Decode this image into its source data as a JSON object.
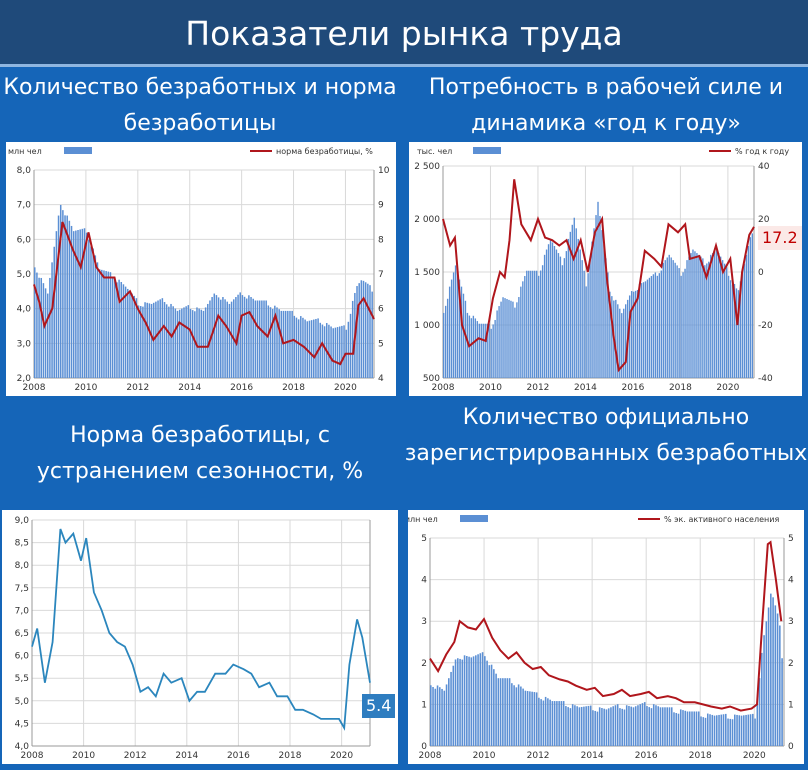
{
  "header": {
    "title": "Показатели рынка труда"
  },
  "colors": {
    "bar": "#5b8fd4",
    "line_red": "#b0161c",
    "line_blue": "#2b86bd",
    "grid": "#d9d9d9"
  },
  "chart_data": [
    {
      "type": "bar",
      "panel_title": "Количество безработных и норма безработицы",
      "legend": {
        "bar": "млн чел",
        "line": "норма безработицы, %"
      },
      "x_ticks": [
        "2008",
        "2010",
        "2012",
        "2014",
        "2016",
        "2018",
        "2020"
      ],
      "ylim": [
        2,
        8
      ],
      "y_ticks": [
        "2,0",
        "3,0",
        "4,0",
        "5,0",
        "6,0",
        "7,0",
        "8,0"
      ],
      "y2lim": [
        4,
        10
      ],
      "y2_ticks": [
        "4",
        "5",
        "6",
        "7",
        "8",
        "9",
        "10"
      ],
      "x_start": 2008,
      "x_end": 2021.1,
      "bars": [
        [
          2008,
          5.3
        ],
        [
          2008.5,
          4.4
        ],
        [
          2009,
          7.1
        ],
        [
          2009.5,
          6.2
        ],
        [
          2010,
          6.3
        ],
        [
          2010.5,
          5.1
        ],
        [
          2011,
          5.0
        ],
        [
          2011.5,
          4.6
        ],
        [
          2012,
          4.2
        ],
        [
          2012.5,
          4.1
        ],
        [
          2013,
          4.3
        ],
        [
          2013.5,
          3.9
        ],
        [
          2014,
          4.1
        ],
        [
          2014.5,
          3.9
        ],
        [
          2015,
          4.5
        ],
        [
          2015.5,
          4.1
        ],
        [
          2016,
          4.5
        ],
        [
          2016.5,
          4.2
        ],
        [
          2017,
          4.2
        ],
        [
          2017.5,
          3.9
        ],
        [
          2018,
          3.9
        ],
        [
          2018.5,
          3.6
        ],
        [
          2019,
          3.7
        ],
        [
          2019.5,
          3.4
        ],
        [
          2020,
          3.5
        ],
        [
          2020.4,
          4.6
        ],
        [
          2020.6,
          4.8
        ],
        [
          2021,
          4.6
        ]
      ],
      "line": [
        [
          2008,
          6.7
        ],
        [
          2008.2,
          6.2
        ],
        [
          2008.4,
          5.5
        ],
        [
          2008.7,
          6.0
        ],
        [
          2009.1,
          8.5
        ],
        [
          2009.5,
          7.7
        ],
        [
          2009.8,
          7.2
        ],
        [
          2010.1,
          8.2
        ],
        [
          2010.4,
          7.2
        ],
        [
          2010.7,
          6.9
        ],
        [
          2011.1,
          6.9
        ],
        [
          2011.3,
          6.2
        ],
        [
          2011.7,
          6.5
        ],
        [
          2012,
          6.0
        ],
        [
          2012.3,
          5.6
        ],
        [
          2012.6,
          5.1
        ],
        [
          2013,
          5.5
        ],
        [
          2013.3,
          5.2
        ],
        [
          2013.6,
          5.6
        ],
        [
          2014,
          5.4
        ],
        [
          2014.3,
          4.9
        ],
        [
          2014.7,
          4.9
        ],
        [
          2015.1,
          5.8
        ],
        [
          2015.4,
          5.5
        ],
        [
          2015.8,
          5.0
        ],
        [
          2016,
          5.8
        ],
        [
          2016.3,
          5.9
        ],
        [
          2016.6,
          5.5
        ],
        [
          2017,
          5.2
        ],
        [
          2017.3,
          5.8
        ],
        [
          2017.6,
          5.0
        ],
        [
          2018,
          5.1
        ],
        [
          2018.4,
          4.9
        ],
        [
          2018.8,
          4.6
        ],
        [
          2019.1,
          5.0
        ],
        [
          2019.5,
          4.5
        ],
        [
          2019.8,
          4.4
        ],
        [
          2020,
          4.7
        ],
        [
          2020.3,
          4.7
        ],
        [
          2020.5,
          6.1
        ],
        [
          2020.7,
          6.3
        ],
        [
          2020.9,
          6.0
        ],
        [
          2021.1,
          5.7
        ]
      ]
    },
    {
      "type": "bar",
      "panel_title": "Потребность в рабочей силе и динамика «год к году»",
      "legend": {
        "bar": "тыс. чел",
        "line": "% год к году"
      },
      "callout": "17.2",
      "x_ticks": [
        "2008",
        "2010",
        "2012",
        "2014",
        "2016",
        "2018",
        "2020"
      ],
      "ylim": [
        500,
        2500
      ],
      "y_ticks": [
        "500",
        "1 000",
        "1 500",
        "2 000",
        "2 500"
      ],
      "y2lim": [
        -40,
        40
      ],
      "y2_ticks": [
        "-40",
        "-20",
        "0",
        "20",
        "40"
      ],
      "x_start": 2008,
      "x_end": 2021.1,
      "bars": [
        [
          2008,
          1150
        ],
        [
          2008.5,
          1550
        ],
        [
          2009,
          1150
        ],
        [
          2009.5,
          1000
        ],
        [
          2010,
          1000
        ],
        [
          2010.5,
          1250
        ],
        [
          2011,
          1200
        ],
        [
          2011.5,
          1500
        ],
        [
          2012,
          1500
        ],
        [
          2012.5,
          1800
        ],
        [
          2013,
          1600
        ],
        [
          2013.5,
          2000
        ],
        [
          2014,
          1400
        ],
        [
          2014.5,
          2150
        ],
        [
          2015,
          1350
        ],
        [
          2015.5,
          1100
        ],
        [
          2016,
          1350
        ],
        [
          2016.5,
          1400
        ],
        [
          2017,
          1500
        ],
        [
          2017.5,
          1650
        ],
        [
          2018,
          1500
        ],
        [
          2018.5,
          1700
        ],
        [
          2019,
          1600
        ],
        [
          2019.5,
          1700
        ],
        [
          2020,
          1500
        ],
        [
          2020.4,
          1300
        ],
        [
          2020.7,
          1600
        ],
        [
          2021,
          1900
        ]
      ],
      "line": [
        [
          2008,
          20
        ],
        [
          2008.3,
          10
        ],
        [
          2008.5,
          13
        ],
        [
          2008.8,
          -20
        ],
        [
          2009.1,
          -28
        ],
        [
          2009.5,
          -25
        ],
        [
          2009.8,
          -26
        ],
        [
          2010.1,
          -10
        ],
        [
          2010.4,
          0
        ],
        [
          2010.6,
          -2
        ],
        [
          2010.8,
          12
        ],
        [
          2011,
          35
        ],
        [
          2011.3,
          18
        ],
        [
          2011.7,
          12
        ],
        [
          2012,
          20
        ],
        [
          2012.3,
          13
        ],
        [
          2012.6,
          12
        ],
        [
          2012.9,
          10
        ],
        [
          2013.2,
          12
        ],
        [
          2013.5,
          5
        ],
        [
          2013.8,
          12
        ],
        [
          2014.1,
          0
        ],
        [
          2014.4,
          15
        ],
        [
          2014.7,
          20
        ],
        [
          2014.9,
          -2
        ],
        [
          2015.2,
          -25
        ],
        [
          2015.4,
          -37
        ],
        [
          2015.7,
          -34
        ],
        [
          2015.9,
          -15
        ],
        [
          2016.2,
          -10
        ],
        [
          2016.5,
          8
        ],
        [
          2016.9,
          5
        ],
        [
          2017.2,
          2
        ],
        [
          2017.5,
          18
        ],
        [
          2017.9,
          15
        ],
        [
          2018.2,
          18
        ],
        [
          2018.4,
          5
        ],
        [
          2018.8,
          6
        ],
        [
          2019.1,
          -2
        ],
        [
          2019.5,
          10
        ],
        [
          2019.8,
          0
        ],
        [
          2020.1,
          5
        ],
        [
          2020.4,
          -20
        ],
        [
          2020.6,
          0
        ],
        [
          2020.9,
          14
        ],
        [
          2021.1,
          17
        ]
      ]
    },
    {
      "type": "line",
      "panel_title": "Норма безработицы, с устранением сезонности, %",
      "callout": "5.4",
      "x_ticks": [
        "2008",
        "2010",
        "2012",
        "2014",
        "2016",
        "2018",
        "2020"
      ],
      "ylim": [
        4.0,
        9.0
      ],
      "y_ticks": [
        "4,0",
        "4,5",
        "5,0",
        "5,5",
        "6,0",
        "6,5",
        "7,0",
        "7,5",
        "8,0",
        "8,5",
        "9,0"
      ],
      "x_start": 2008,
      "x_end": 2021.1,
      "line": [
        [
          2008,
          6.2
        ],
        [
          2008.2,
          6.6
        ],
        [
          2008.5,
          5.4
        ],
        [
          2008.8,
          6.3
        ],
        [
          2009.1,
          8.8
        ],
        [
          2009.3,
          8.5
        ],
        [
          2009.6,
          8.7
        ],
        [
          2009.9,
          8.1
        ],
        [
          2010.1,
          8.6
        ],
        [
          2010.4,
          7.4
        ],
        [
          2010.7,
          7.0
        ],
        [
          2011,
          6.5
        ],
        [
          2011.3,
          6.3
        ],
        [
          2011.6,
          6.2
        ],
        [
          2011.9,
          5.8
        ],
        [
          2012.2,
          5.2
        ],
        [
          2012.5,
          5.3
        ],
        [
          2012.8,
          5.1
        ],
        [
          2013.1,
          5.6
        ],
        [
          2013.4,
          5.4
        ],
        [
          2013.8,
          5.5
        ],
        [
          2014.1,
          5.0
        ],
        [
          2014.4,
          5.2
        ],
        [
          2014.7,
          5.2
        ],
        [
          2015.1,
          5.6
        ],
        [
          2015.5,
          5.6
        ],
        [
          2015.8,
          5.8
        ],
        [
          2016.2,
          5.7
        ],
        [
          2016.5,
          5.6
        ],
        [
          2016.8,
          5.3
        ],
        [
          2017.2,
          5.4
        ],
        [
          2017.5,
          5.1
        ],
        [
          2017.9,
          5.1
        ],
        [
          2018.2,
          4.8
        ],
        [
          2018.5,
          4.8
        ],
        [
          2018.9,
          4.7
        ],
        [
          2019.2,
          4.6
        ],
        [
          2019.6,
          4.6
        ],
        [
          2019.9,
          4.6
        ],
        [
          2020.1,
          4.4
        ],
        [
          2020.3,
          5.8
        ],
        [
          2020.6,
          6.8
        ],
        [
          2020.8,
          6.4
        ],
        [
          2021.1,
          5.4
        ]
      ]
    },
    {
      "type": "bar",
      "panel_title": "Количество официально зарегистрированных безработных",
      "legend": {
        "bar": "млн чел",
        "line": "% эк. активного населения"
      },
      "x_ticks": [
        "2008",
        "2010",
        "2012",
        "2014",
        "2016",
        "2018",
        "2020"
      ],
      "ylim": [
        0,
        5
      ],
      "y_ticks": [
        "0",
        "1",
        "2",
        "3",
        "4",
        "5"
      ],
      "y2lim": [
        0,
        5
      ],
      "y2_ticks": [
        "0",
        "1",
        "2",
        "3",
        "4",
        "5"
      ],
      "x_start": 2008,
      "x_end": 2021.1,
      "bars": [
        [
          2008,
          1.55
        ],
        [
          2008.5,
          1.3
        ],
        [
          2009,
          2.2
        ],
        [
          2009.5,
          2.1
        ],
        [
          2010,
          2.25
        ],
        [
          2010.5,
          1.6
        ],
        [
          2011,
          1.6
        ],
        [
          2011.5,
          1.3
        ],
        [
          2012,
          1.25
        ],
        [
          2012.5,
          1.05
        ],
        [
          2013,
          1.05
        ],
        [
          2013.5,
          0.9
        ],
        [
          2014,
          0.95
        ],
        [
          2014.5,
          0.85
        ],
        [
          2015,
          1.0
        ],
        [
          2015.5,
          0.9
        ],
        [
          2016,
          1.05
        ],
        [
          2016.5,
          0.9
        ],
        [
          2017,
          0.9
        ],
        [
          2017.5,
          0.8
        ],
        [
          2018,
          0.8
        ],
        [
          2018.5,
          0.7
        ],
        [
          2019,
          0.75
        ],
        [
          2019.5,
          0.7
        ],
        [
          2020,
          0.75
        ],
        [
          2020.3,
          2.5
        ],
        [
          2020.6,
          3.7
        ],
        [
          2020.9,
          3.0
        ],
        [
          2021,
          2.2
        ]
      ],
      "line": [
        [
          2008,
          2.1
        ],
        [
          2008.3,
          1.8
        ],
        [
          2008.6,
          2.2
        ],
        [
          2008.9,
          2.5
        ],
        [
          2009.1,
          3.0
        ],
        [
          2009.4,
          2.85
        ],
        [
          2009.7,
          2.8
        ],
        [
          2010,
          3.05
        ],
        [
          2010.3,
          2.6
        ],
        [
          2010.6,
          2.3
        ],
        [
          2010.9,
          2.1
        ],
        [
          2011.2,
          2.25
        ],
        [
          2011.5,
          2.0
        ],
        [
          2011.8,
          1.85
        ],
        [
          2012.1,
          1.9
        ],
        [
          2012.4,
          1.7
        ],
        [
          2012.8,
          1.6
        ],
        [
          2013.1,
          1.55
        ],
        [
          2013.4,
          1.45
        ],
        [
          2013.8,
          1.35
        ],
        [
          2014.1,
          1.4
        ],
        [
          2014.4,
          1.2
        ],
        [
          2014.8,
          1.25
        ],
        [
          2015.1,
          1.35
        ],
        [
          2015.4,
          1.2
        ],
        [
          2015.8,
          1.25
        ],
        [
          2016.1,
          1.3
        ],
        [
          2016.4,
          1.15
        ],
        [
          2016.8,
          1.2
        ],
        [
          2017.1,
          1.15
        ],
        [
          2017.4,
          1.05
        ],
        [
          2017.8,
          1.05
        ],
        [
          2018.1,
          1.0
        ],
        [
          2018.4,
          0.95
        ],
        [
          2018.8,
          0.9
        ],
        [
          2019.1,
          0.95
        ],
        [
          2019.5,
          0.85
        ],
        [
          2019.9,
          0.9
        ],
        [
          2020.1,
          1.0
        ],
        [
          2020.3,
          3.0
        ],
        [
          2020.5,
          4.85
        ],
        [
          2020.6,
          4.9
        ],
        [
          2020.8,
          4.0
        ],
        [
          2021.0,
          3.0
        ]
      ]
    }
  ]
}
